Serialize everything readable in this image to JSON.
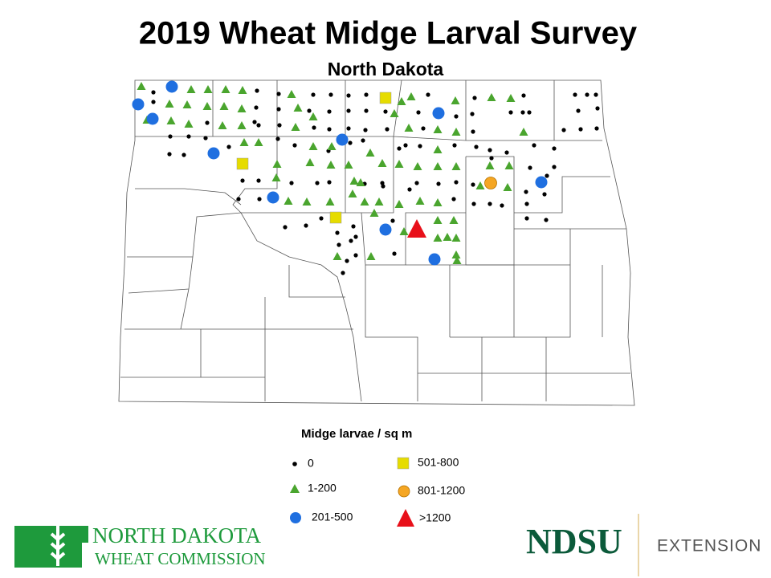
{
  "header": {
    "title": "2019 Wheat Midge Larval Survey",
    "subtitle": "North Dakota"
  },
  "legend": {
    "title": "Midge larvae / sq m",
    "items": [
      "0",
      "1-200",
      "201-500",
      "501-800",
      "801-1200",
      ">1200"
    ]
  },
  "logos": {
    "commission_line1": "NORTH DAKOTA",
    "commission_line2": "WHEAT COMMISSION",
    "ndsu": "NDSU",
    "extension": "EXTENSION"
  }
}
